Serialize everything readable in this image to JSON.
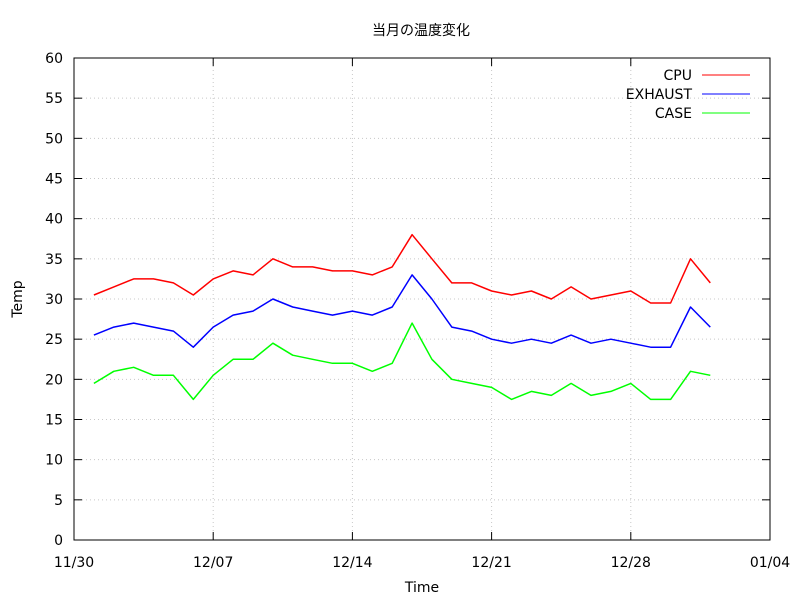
{
  "chart_data": {
    "type": "line",
    "title": "当月の温度変化",
    "xlabel": "Time",
    "ylabel": "Temp",
    "xlim": [
      "11/30",
      "01/04"
    ],
    "ylim": [
      0,
      60
    ],
    "grid": true,
    "legend_position": "top-right",
    "x_ticks": [
      "11/30",
      "12/07",
      "12/14",
      "12/21",
      "12/28",
      "01/04"
    ],
    "y_ticks": [
      0,
      5,
      10,
      15,
      20,
      25,
      30,
      35,
      40,
      45,
      50,
      55,
      60
    ],
    "x": [
      "12/01",
      "12/02",
      "12/03",
      "12/04",
      "12/05",
      "12/06",
      "12/07",
      "12/08",
      "12/09",
      "12/10",
      "12/11",
      "12/12",
      "12/13",
      "12/14",
      "12/15",
      "12/16",
      "12/17",
      "12/18",
      "12/19",
      "12/20",
      "12/21",
      "12/22",
      "12/23",
      "12/24",
      "12/25",
      "12/26",
      "12/27",
      "12/28",
      "12/29",
      "12/30",
      "12/31",
      "01/01"
    ],
    "series": [
      {
        "name": "CPU",
        "color": "#ff0000",
        "values": [
          30.5,
          31.5,
          32.5,
          32.5,
          32.0,
          30.5,
          32.5,
          33.5,
          33.0,
          35.0,
          34.0,
          34.0,
          33.5,
          33.5,
          33.0,
          34.0,
          38.0,
          35.0,
          32.0,
          32.0,
          31.0,
          30.5,
          31.0,
          30.0,
          31.5,
          30.0,
          30.5,
          31.0,
          29.5,
          29.5,
          35.0,
          32.0
        ]
      },
      {
        "name": "EXHAUST",
        "color": "#0000ff",
        "values": [
          25.5,
          26.5,
          27.0,
          26.5,
          26.0,
          24.0,
          26.5,
          28.0,
          28.5,
          30.0,
          29.0,
          28.5,
          28.0,
          28.5,
          28.0,
          29.0,
          33.0,
          30.0,
          26.5,
          26.0,
          25.0,
          24.5,
          25.0,
          24.5,
          25.5,
          24.5,
          25.0,
          24.5,
          24.0,
          24.0,
          29.0,
          26.5
        ]
      },
      {
        "name": "CASE",
        "color": "#00ff00",
        "values": [
          19.5,
          21.0,
          21.5,
          20.5,
          20.5,
          17.5,
          20.5,
          22.5,
          22.5,
          24.5,
          23.0,
          22.5,
          22.0,
          22.0,
          21.0,
          22.0,
          27.0,
          22.5,
          20.0,
          19.5,
          19.0,
          17.5,
          18.5,
          18.0,
          19.5,
          18.0,
          18.5,
          19.5,
          17.5,
          17.5,
          21.0,
          20.5
        ]
      }
    ]
  }
}
